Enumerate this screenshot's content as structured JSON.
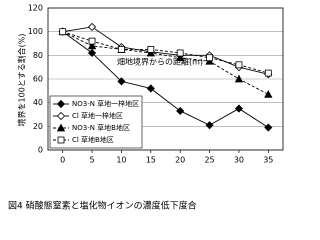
{
  "chart_data": {
    "type": "line",
    "x_label": "畑地境界からの距離(m)",
    "y_label": "境界を100とする割合(%)",
    "caption": "図4 硝酸態窒素と塩化物イオンの濃度低下度合",
    "x": [
      0,
      5,
      10,
      15,
      20,
      25,
      30,
      35
    ],
    "series": [
      {
        "name": "NO3-N 草地一梓地区",
        "color": "#000000",
        "marker": "diamond",
        "filled": true,
        "dashed": false,
        "values": [
          100,
          82,
          58,
          52,
          33,
          21,
          35,
          19
        ]
      },
      {
        "name": "Cl 草地一梓地区",
        "color": "#000000",
        "marker": "diamond",
        "filled": false,
        "dashed": false,
        "values": [
          100,
          104,
          87,
          83,
          80,
          80,
          70,
          64
        ]
      },
      {
        "name": "NO3-N 草地B地区",
        "color": "#000000",
        "marker": "triangle",
        "filled": true,
        "dashed": true,
        "values": [
          100,
          88,
          85,
          82,
          78,
          75,
          60,
          47
        ]
      },
      {
        "name": "Cl 草地B地区",
        "color": "#000000",
        "marker": "square",
        "filled": false,
        "dashed": true,
        "values": [
          100,
          92,
          85,
          85,
          82,
          78,
          72,
          65
        ]
      }
    ],
    "xlim": [
      -2.5,
      37.5
    ],
    "xticks": [
      0,
      5,
      10,
      15,
      20,
      25,
      30,
      35
    ],
    "ylim": [
      0,
      120
    ],
    "yticks": [
      0,
      20,
      40,
      60,
      80,
      100,
      120
    ],
    "grid": true,
    "legend": "lower left"
  }
}
